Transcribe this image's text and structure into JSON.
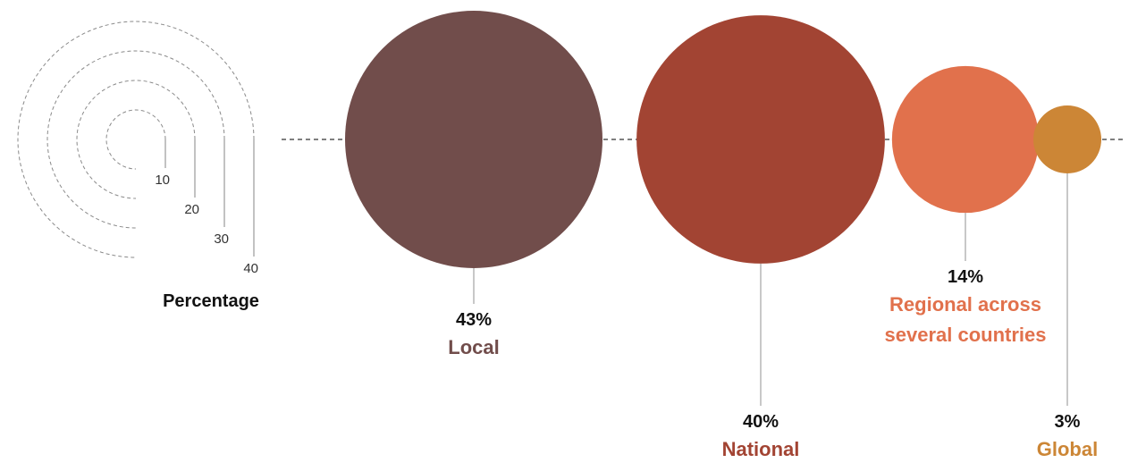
{
  "chart_data": {
    "type": "bubble",
    "size_unit": "%",
    "legend": {
      "title": "Percentage",
      "values": [
        10,
        20,
        30,
        40
      ],
      "tick_labels": [
        "10",
        "20",
        "30",
        "40"
      ]
    },
    "series": [
      {
        "category": "Local",
        "label_lines": [
          "Local"
        ],
        "value": 43,
        "value_label": "43%",
        "color": "#714d4b"
      },
      {
        "category": "National",
        "label_lines": [
          "National"
        ],
        "value": 40,
        "value_label": "40%",
        "color": "#a24433"
      },
      {
        "category": "Regional across several countries",
        "label_lines": [
          "Regional across",
          "several countries"
        ],
        "value": 14,
        "value_label": "14%",
        "color": "#e1714c"
      },
      {
        "category": "Global",
        "label_lines": [
          "Global"
        ],
        "value": 3,
        "value_label": "3%",
        "color": "#cc8636"
      }
    ]
  }
}
